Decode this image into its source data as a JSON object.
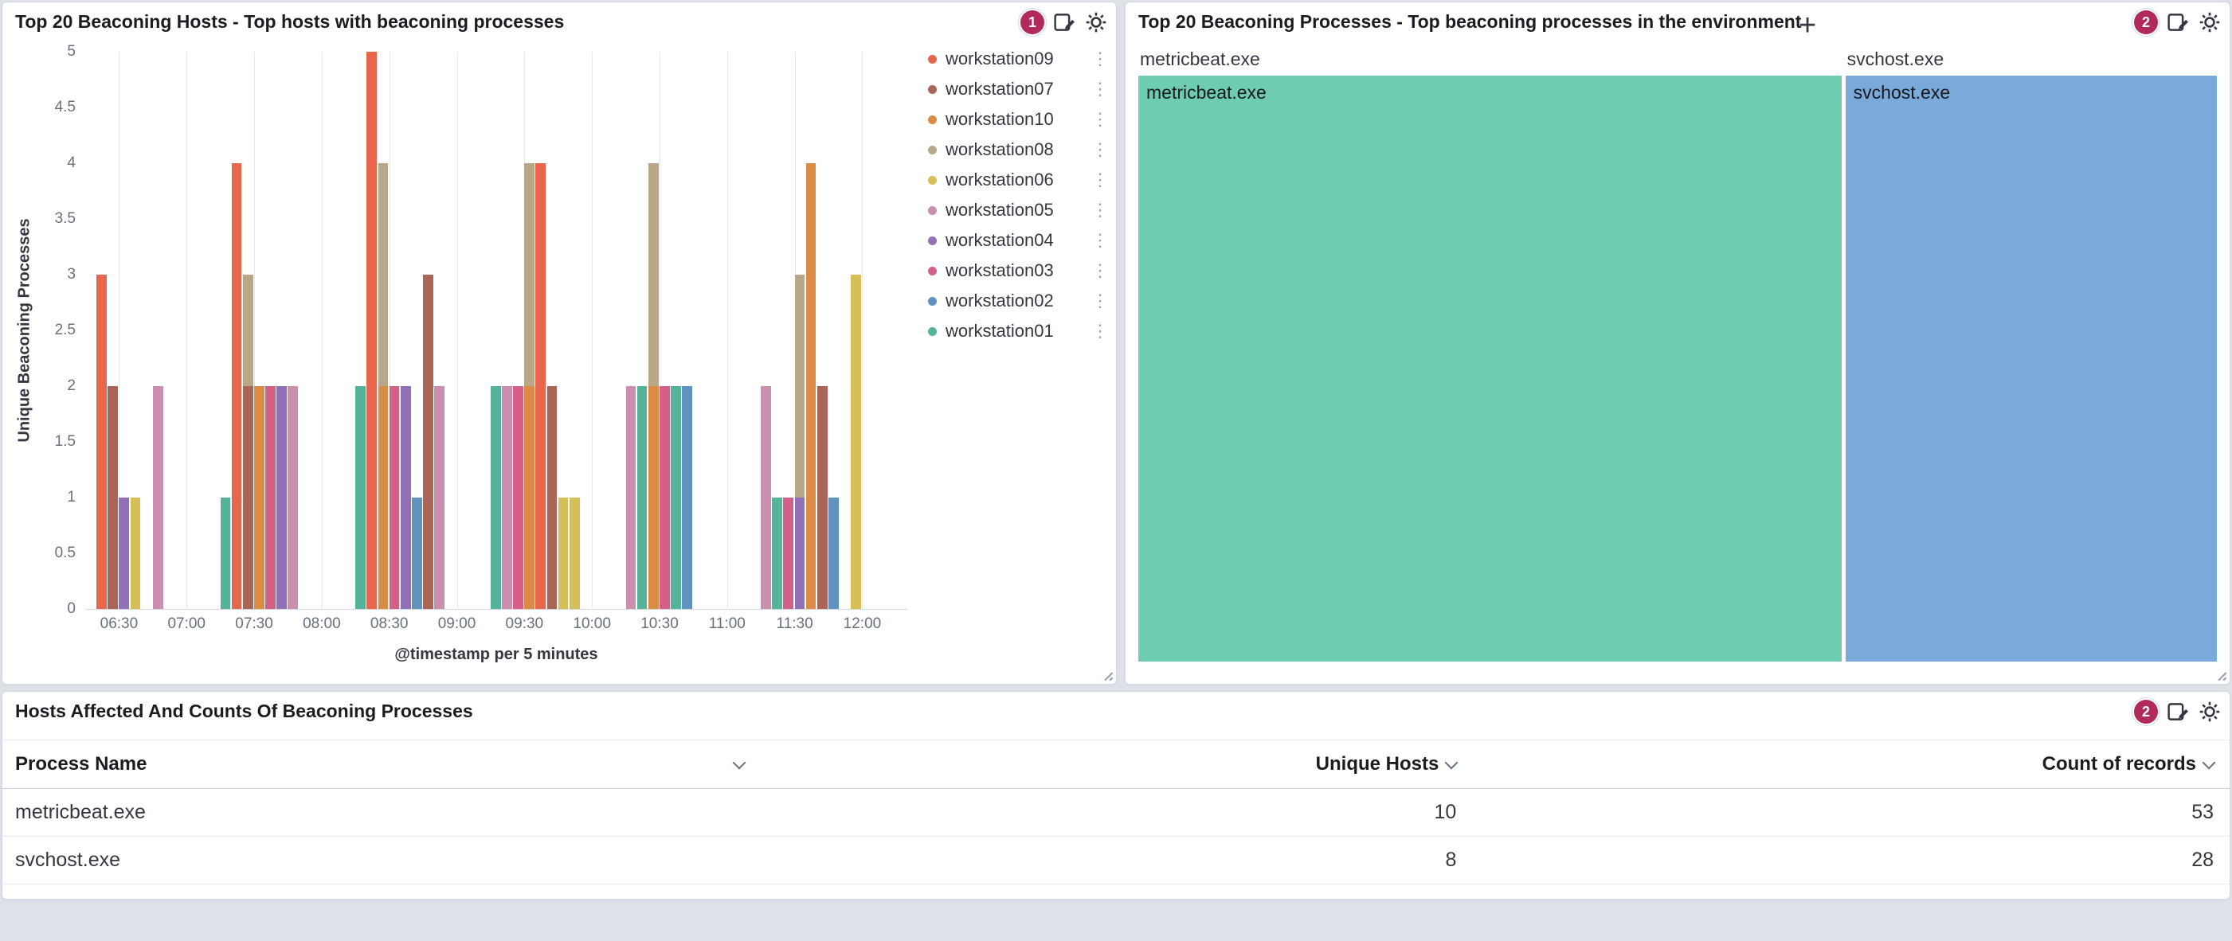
{
  "page": {
    "background": "#dde1e8"
  },
  "colors": {
    "panel_border": "#d3dae6",
    "badge": "#b22a5b",
    "title_text": "#1a1c21",
    "muted_text": "#69707d",
    "gridline": "#e6e9ef"
  },
  "icons": {
    "legend_options_glyph": "⋮",
    "crosshair_glyph": "+",
    "names": [
      "notification-badge",
      "edit-panel-icon",
      "gear-icon",
      "sort-chevron-icon",
      "legend-options-icon",
      "resize-handle-icon",
      "crosshair-cursor"
    ]
  },
  "panels": {
    "hosts": {
      "title": "Top 20 Beaconing Hosts - Top hosts with beaconing processes",
      "badge_count": "1"
    },
    "processes": {
      "title": "Top 20 Beaconing Processes - Top beaconing processes in the environment",
      "badge_count": "2"
    },
    "table": {
      "title": "Hosts Affected And Counts Of Beaconing Processes",
      "badge_count": "2"
    }
  },
  "chart_data": [
    {
      "type": "bar",
      "title": "Top 20 Beaconing Hosts - Top hosts with beaconing processes",
      "ylabel": "Unique Beaconing Processes",
      "xlabel": "@timestamp per 5 minutes",
      "ylim": [
        0,
        5
      ],
      "yticks": [
        0,
        0.5,
        1,
        1.5,
        2,
        2.5,
        3,
        3.5,
        4,
        4.5,
        5
      ],
      "xticks": [
        "06:30",
        "07:00",
        "07:30",
        "08:00",
        "08:30",
        "09:00",
        "09:30",
        "10:00",
        "10:30",
        "11:00",
        "11:30",
        "12:00"
      ],
      "x_domain": [
        "06:15",
        "12:20"
      ],
      "bucket_minutes": 5,
      "grid": "vertical",
      "legend_position": "right",
      "series": [
        {
          "name": "workstation09",
          "color": "#E7664C"
        },
        {
          "name": "workstation07",
          "color": "#AA6556"
        },
        {
          "name": "workstation10",
          "color": "#DA8B45"
        },
        {
          "name": "workstation08",
          "color": "#B9A888"
        },
        {
          "name": "workstation06",
          "color": "#D6BF57"
        },
        {
          "name": "workstation05",
          "color": "#CA8EAE"
        },
        {
          "name": "workstation04",
          "color": "#9170B8"
        },
        {
          "name": "workstation03",
          "color": "#D36086"
        },
        {
          "name": "workstation02",
          "color": "#6092C0"
        },
        {
          "name": "workstation01",
          "color": "#54B399"
        }
      ],
      "bars": [
        {
          "time": "06:20",
          "segments": [
            {
              "series": "workstation09",
              "value": 3
            }
          ]
        },
        {
          "time": "06:25",
          "segments": [
            {
              "series": "workstation07",
              "value": 2
            }
          ]
        },
        {
          "time": "06:30",
          "segments": [
            {
              "series": "workstation04",
              "value": 1
            }
          ]
        },
        {
          "time": "06:35",
          "segments": [
            {
              "series": "workstation06",
              "value": 1
            }
          ]
        },
        {
          "time": "06:45",
          "segments": [
            {
              "series": "workstation05",
              "value": 2
            }
          ]
        },
        {
          "time": "07:15",
          "segments": [
            {
              "series": "workstation01",
              "value": 1
            }
          ]
        },
        {
          "time": "07:20",
          "segments": [
            {
              "series": "workstation09",
              "value": 4
            }
          ]
        },
        {
          "time": "07:25",
          "segments": [
            {
              "series": "workstation07",
              "value": 2
            },
            {
              "series": "workstation08",
              "value": 1
            }
          ]
        },
        {
          "time": "07:30",
          "segments": [
            {
              "series": "workstation10",
              "value": 2
            }
          ]
        },
        {
          "time": "07:35",
          "segments": [
            {
              "series": "workstation03",
              "value": 2
            }
          ]
        },
        {
          "time": "07:40",
          "segments": [
            {
              "series": "workstation04",
              "value": 2
            }
          ]
        },
        {
          "time": "07:45",
          "segments": [
            {
              "series": "workstation05",
              "value": 2
            }
          ]
        },
        {
          "time": "08:15",
          "segments": [
            {
              "series": "workstation01",
              "value": 2
            }
          ]
        },
        {
          "time": "08:20",
          "segments": [
            {
              "series": "workstation09",
              "value": 5
            }
          ]
        },
        {
          "time": "08:25",
          "segments": [
            {
              "series": "workstation10",
              "value": 2
            },
            {
              "series": "workstation08",
              "value": 2
            }
          ]
        },
        {
          "time": "08:30",
          "segments": [
            {
              "series": "workstation03",
              "value": 2
            }
          ]
        },
        {
          "time": "08:35",
          "segments": [
            {
              "series": "workstation04",
              "value": 2
            }
          ]
        },
        {
          "time": "08:40",
          "segments": [
            {
              "series": "workstation02",
              "value": 1
            }
          ]
        },
        {
          "time": "08:45",
          "segments": [
            {
              "series": "workstation07",
              "value": 3
            }
          ]
        },
        {
          "time": "08:50",
          "segments": [
            {
              "series": "workstation05",
              "value": 2
            }
          ]
        },
        {
          "time": "09:15",
          "segments": [
            {
              "series": "workstation01",
              "value": 2
            }
          ]
        },
        {
          "time": "09:20",
          "segments": [
            {
              "series": "workstation05",
              "value": 2
            }
          ]
        },
        {
          "time": "09:25",
          "segments": [
            {
              "series": "workstation03",
              "value": 2
            }
          ]
        },
        {
          "time": "09:30",
          "segments": [
            {
              "series": "workstation10",
              "value": 2
            },
            {
              "series": "workstation08",
              "value": 2
            }
          ]
        },
        {
          "time": "09:35",
          "segments": [
            {
              "series": "workstation09",
              "value": 4
            }
          ]
        },
        {
          "time": "09:40",
          "segments": [
            {
              "series": "workstation07",
              "value": 2
            }
          ]
        },
        {
          "time": "09:45",
          "segments": [
            {
              "series": "workstation06",
              "value": 1
            }
          ]
        },
        {
          "time": "09:50",
          "segments": [
            {
              "series": "workstation06",
              "value": 1
            }
          ]
        },
        {
          "time": "10:15",
          "segments": [
            {
              "series": "workstation05",
              "value": 2
            }
          ]
        },
        {
          "time": "10:20",
          "segments": [
            {
              "series": "workstation01",
              "value": 2
            }
          ]
        },
        {
          "time": "10:25",
          "segments": [
            {
              "series": "workstation10",
              "value": 2
            },
            {
              "series": "workstation08",
              "value": 2
            }
          ]
        },
        {
          "time": "10:30",
          "segments": [
            {
              "series": "workstation03",
              "value": 2
            }
          ]
        },
        {
          "time": "10:35",
          "segments": [
            {
              "series": "workstation01",
              "value": 2
            }
          ]
        },
        {
          "time": "10:40",
          "segments": [
            {
              "series": "workstation02",
              "value": 2
            }
          ]
        },
        {
          "time": "11:15",
          "segments": [
            {
              "series": "workstation05",
              "value": 2
            }
          ]
        },
        {
          "time": "11:20",
          "segments": [
            {
              "series": "workstation01",
              "value": 1
            }
          ]
        },
        {
          "time": "11:25",
          "segments": [
            {
              "series": "workstation03",
              "value": 1
            }
          ]
        },
        {
          "time": "11:30",
          "segments": [
            {
              "series": "workstation04",
              "value": 1
            },
            {
              "series": "workstation08",
              "value": 2
            }
          ]
        },
        {
          "time": "11:35",
          "segments": [
            {
              "series": "workstation10",
              "value": 4
            }
          ]
        },
        {
          "time": "11:40",
          "segments": [
            {
              "series": "workstation07",
              "value": 2
            }
          ]
        },
        {
          "time": "11:45",
          "segments": [
            {
              "series": "workstation02",
              "value": 1
            }
          ]
        },
        {
          "time": "11:55",
          "segments": [
            {
              "series": "workstation06",
              "value": 3
            }
          ]
        }
      ]
    },
    {
      "type": "treemap",
      "title": "Top 20 Beaconing Processes - Top beaconing processes in the environment",
      "items": [
        {
          "label": "metricbeat.exe",
          "value": 53,
          "color": "#6DCCB1"
        },
        {
          "label": "svchost.exe",
          "value": 28,
          "color": "#79AAD9"
        }
      ]
    },
    {
      "type": "table",
      "title": "Hosts Affected And Counts Of Beaconing Processes",
      "columns": [
        "Process Name",
        "Unique Hosts",
        "Count of records"
      ],
      "rows": [
        [
          "metricbeat.exe",
          "10",
          "53"
        ],
        [
          "svchost.exe",
          "8",
          "28"
        ]
      ]
    }
  ]
}
